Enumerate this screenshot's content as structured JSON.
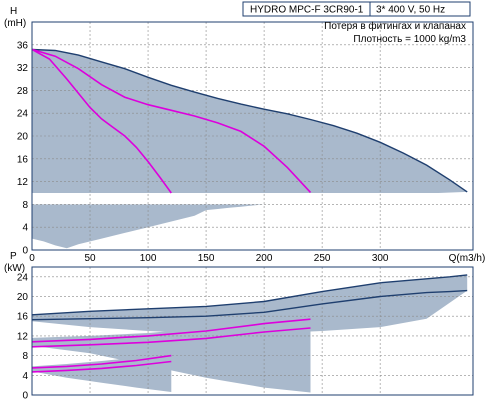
{
  "chart_data": [
    {
      "type": "line",
      "title": "HYDRO MPC-F 3CR90-1",
      "subtitle": "3* 400 V, 50 Hz",
      "annotations": [
        "Потеря в фитингах и клапанах",
        "Плотность = 1000 kg/m3"
      ],
      "ylabel": "H",
      "yunit": "(mН)",
      "xlabel": "Q(m3/h)",
      "xlim": [
        0,
        380
      ],
      "ylim": [
        0,
        40
      ],
      "xticks": [
        0,
        50,
        100,
        150,
        200,
        250,
        300
      ],
      "yticks": [
        0,
        4,
        8,
        12,
        16,
        20,
        24,
        28,
        32,
        36
      ],
      "grid": true,
      "colors": {
        "frame": "#1f3f6f",
        "series_dark": "#1f3f6f",
        "series_magenta": "#dd00dd",
        "shade": "#a9b9cc",
        "grid": "#8a8a8a"
      },
      "series": [
        {
          "color": "dark",
          "x": [
            0,
            20,
            40,
            60,
            80,
            100,
            120,
            140,
            160,
            180,
            200,
            220,
            240,
            260,
            280,
            300,
            320,
            340,
            360,
            375
          ],
          "y": [
            35.2,
            35.0,
            34.2,
            33.0,
            31.8,
            30.3,
            28.9,
            27.7,
            26.6,
            25.6,
            24.7,
            23.9,
            22.9,
            21.8,
            20.5,
            18.9,
            17.0,
            14.9,
            12.3,
            10.2
          ]
        },
        {
          "color": "magenta",
          "x": [
            0,
            20,
            40,
            60,
            80,
            100,
            120,
            140,
            160,
            180,
            200,
            220,
            240
          ],
          "y": [
            35.2,
            34.0,
            31.8,
            29.0,
            26.8,
            25.5,
            24.5,
            23.5,
            22.3,
            20.8,
            18.2,
            14.5,
            10.1
          ]
        },
        {
          "color": "magenta",
          "x": [
            0,
            15,
            30,
            40,
            50,
            60,
            70,
            80,
            90,
            100,
            110,
            120
          ],
          "y": [
            35.2,
            33.5,
            30.0,
            27.5,
            25.0,
            23.0,
            21.5,
            20.0,
            18.0,
            15.5,
            12.8,
            10.0
          ]
        }
      ],
      "shaded_region": {
        "upper": {
          "x": [
            0,
            20,
            40,
            60,
            80,
            100,
            120,
            140,
            160,
            180,
            200,
            220,
            240,
            260,
            280,
            300,
            320,
            340,
            360,
            375
          ],
          "y": [
            35.2,
            35.0,
            34.2,
            33.0,
            31.8,
            30.3,
            28.9,
            27.7,
            26.6,
            25.6,
            24.7,
            23.9,
            22.9,
            21.8,
            20.5,
            18.9,
            17.0,
            14.9,
            12.3,
            10.2
          ]
        },
        "lower": {
          "x": [
            0,
            10,
            20,
            30,
            40,
            60,
            80,
            100,
            120,
            140,
            150,
            160,
            170,
            180,
            200,
            240,
            260,
            280,
            300,
            375
          ],
          "y": [
            2.0,
            1.5,
            0.8,
            0.3,
            1.0,
            2.0,
            3.0,
            4.0,
            5.0,
            6.0,
            7.0,
            7.2,
            7.4,
            7.6,
            8.0,
            8.5,
            9.0,
            9.2,
            9.6,
            10.2
          ]
        },
        "gap_band": {
          "y_from": 8.0,
          "y_to": 10.0
        }
      }
    },
    {
      "type": "line",
      "ylabel": "P",
      "yunit": "(kW)",
      "xlim": [
        0,
        380
      ],
      "ylim": [
        0,
        26
      ],
      "yticks": [
        0,
        4,
        8,
        12,
        16,
        20,
        24
      ],
      "grid": true,
      "series": [
        {
          "color": "dark",
          "x": [
            0,
            50,
            100,
            150,
            200,
            250,
            300,
            340,
            360,
            375
          ],
          "y": [
            16.3,
            17.0,
            17.5,
            18.0,
            19.0,
            21.0,
            22.8,
            23.6,
            24.0,
            24.4
          ]
        },
        {
          "color": "dark",
          "x": [
            0,
            50,
            100,
            150,
            200,
            250,
            300,
            340,
            360,
            375
          ],
          "y": [
            15.3,
            15.5,
            15.7,
            16.0,
            16.8,
            18.5,
            20.0,
            20.8,
            21.0,
            21.2
          ]
        },
        {
          "color": "magenta",
          "x": [
            0,
            50,
            100,
            150,
            200,
            240
          ],
          "y": [
            10.8,
            11.3,
            12.0,
            13.0,
            14.5,
            15.4
          ]
        },
        {
          "color": "magenta",
          "x": [
            0,
            50,
            100,
            150,
            200,
            240
          ],
          "y": [
            9.8,
            10.2,
            10.7,
            11.5,
            12.8,
            13.6
          ]
        },
        {
          "color": "magenta",
          "x": [
            0,
            30,
            60,
            90,
            120
          ],
          "y": [
            5.5,
            5.8,
            6.3,
            7.0,
            8.0
          ]
        },
        {
          "color": "magenta",
          "x": [
            0,
            30,
            60,
            90,
            120
          ],
          "y": [
            4.7,
            5.0,
            5.4,
            6.0,
            6.8
          ]
        }
      ],
      "shaded_regions": [
        {
          "upper": {
            "x": [
              0,
              50,
              100,
              150,
              200,
              250,
              300,
              340,
              375
            ],
            "y": [
              16.3,
              17.0,
              17.5,
              18.0,
              19.0,
              21.0,
              22.8,
              23.6,
              24.4
            ]
          },
          "lower": {
            "x": [
              0,
              50,
              100,
              150,
              200,
              250,
              300,
              340,
              375
            ],
            "y": [
              15.0,
              13.8,
              13.0,
              12.5,
              12.5,
              13.0,
              13.8,
              15.5,
              21.2
            ]
          }
        },
        {
          "upper": {
            "x": [
              0,
              50,
              100,
              150,
              200,
              240
            ],
            "y": [
              11.6,
              12.0,
              12.6,
              13.6,
              15.0,
              15.4
            ]
          },
          "lower": {
            "x": [
              0,
              50,
              100,
              150,
              200,
              240
            ],
            "y": [
              10.0,
              8.5,
              6.0,
              3.5,
              1.5,
              0.5
            ]
          }
        },
        {
          "upper": {
            "x": [
              0,
              30,
              60,
              90,
              120
            ],
            "y": [
              5.8,
              6.3,
              6.9,
              7.6,
              8.0
            ]
          },
          "lower": {
            "x": [
              0,
              30,
              60,
              90,
              120
            ],
            "y": [
              4.8,
              3.5,
              2.5,
              1.5,
              0.6
            ]
          }
        }
      ]
    }
  ]
}
